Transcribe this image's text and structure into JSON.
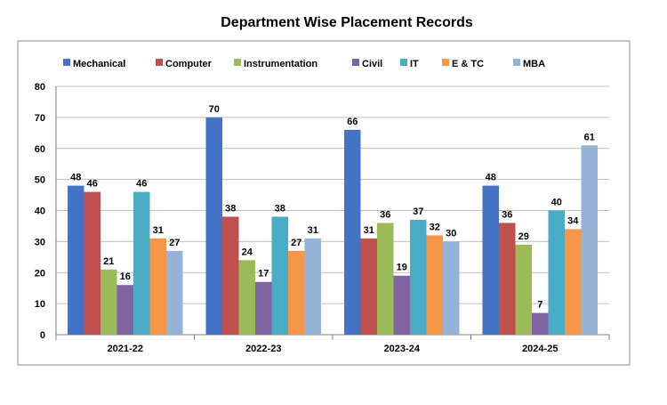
{
  "chart_data": {
    "type": "bar",
    "title": "Department Wise Placement Records",
    "xlabel": "",
    "ylabel": "",
    "categories": [
      "2021-22",
      "2022-23",
      "2023-24",
      "2024-25"
    ],
    "ylim": [
      0,
      80
    ],
    "yticks": [
      0,
      10,
      20,
      30,
      40,
      50,
      60,
      70,
      80
    ],
    "grid": true,
    "legend_position": "top",
    "series": [
      {
        "name": "Mechanical",
        "color": "#4472C4",
        "values": [
          48,
          70,
          66,
          48
        ]
      },
      {
        "name": "Computer",
        "color": "#C0504D",
        "values": [
          46,
          38,
          31,
          36
        ]
      },
      {
        "name": "Instrumentation",
        "color": "#9BBB59",
        "values": [
          21,
          24,
          36,
          29
        ]
      },
      {
        "name": "Civil",
        "color": "#8064A2",
        "values": [
          16,
          17,
          19,
          7
        ]
      },
      {
        "name": "IT",
        "color": "#4BACC6",
        "values": [
          46,
          38,
          37,
          40
        ]
      },
      {
        "name": "E & TC",
        "color": "#F79646",
        "values": [
          31,
          27,
          32,
          34
        ]
      },
      {
        "name": "MBA",
        "color": "#95B3D7",
        "values": [
          27,
          31,
          30,
          61
        ]
      }
    ]
  }
}
